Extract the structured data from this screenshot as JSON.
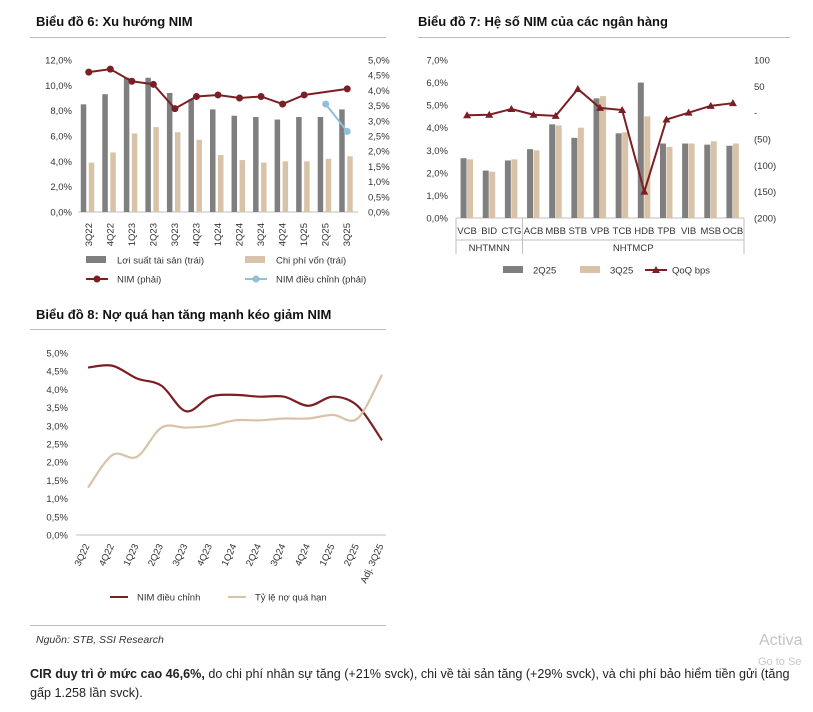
{
  "charts": {
    "c6": {
      "title": "Biểu đồ 6: Xu hướng NIM"
    },
    "c7": {
      "title": "Biểu đồ 7: Hệ số NIM của các ngân hàng"
    },
    "c8": {
      "title": "Biểu đồ 8: Nợ quá hạn tăng mạnh kéo giảm NIM"
    }
  },
  "source": "Nguồn: STB, SSI Research",
  "footnote": {
    "bold": "CIR duy trì ở mức cao 46,6%,",
    "text": " do chi phí nhân sự tăng (+21% svck), chi về tài sản tăng (+29% svck), và chi phí bảo hiểm tiền gửi (tăng gấp 1.258 lần svck)."
  },
  "watermark": {
    "line1": "Activa",
    "line2": "Go to Se"
  },
  "colors": {
    "dark_gray": "#7f7f7f",
    "tan": "#d9c3a8",
    "maroon": "#7b1f24",
    "light_blue": "#8fc0d8"
  },
  "chart_data": [
    {
      "type": "bar",
      "title": "Biểu đồ 6: Xu hướng NIM",
      "categories": [
        "3Q22",
        "4Q22",
        "1Q23",
        "2Q23",
        "3Q23",
        "4Q23",
        "1Q24",
        "2Q24",
        "3Q24",
        "4Q24",
        "1Q25",
        "2Q25",
        "3Q25"
      ],
      "y_left_ticks": [
        "0,0%",
        "2,0%",
        "4,0%",
        "6,0%",
        "8,0%",
        "10,0%",
        "12,0%"
      ],
      "y_right_ticks": [
        "0,0%",
        "0,5%",
        "1,0%",
        "1,5%",
        "2,0%",
        "2,5%",
        "3,0%",
        "3,5%",
        "4,0%",
        "4,5%",
        "5,0%"
      ],
      "ylim_left": [
        0,
        12
      ],
      "ylim_right": [
        0,
        5
      ],
      "series": [
        {
          "name": "Lơi suất tài sản (trái)",
          "kind": "bar",
          "axis": "left",
          "color": "#7f7f7f",
          "values": [
            8.5,
            9.3,
            10.6,
            10.6,
            9.4,
            8.9,
            8.1,
            7.6,
            7.5,
            7.3,
            7.5,
            7.5,
            8.1
          ]
        },
        {
          "name": "Chi phí vốn (trái)",
          "kind": "bar",
          "axis": "left",
          "color": "#d9c3a8",
          "values": [
            3.9,
            4.7,
            6.2,
            6.7,
            6.3,
            5.7,
            4.5,
            4.1,
            3.9,
            4.0,
            4.0,
            4.2,
            4.4
          ]
        },
        {
          "name": "NIM (phải)",
          "kind": "line",
          "axis": "right",
          "color": "#7b1f24",
          "values": [
            4.6,
            4.7,
            4.3,
            4.2,
            3.4,
            3.8,
            3.85,
            3.75,
            3.8,
            3.55,
            3.85,
            null,
            4.05
          ]
        },
        {
          "name": "NIM điều chỉnh (phải)",
          "kind": "line",
          "axis": "right",
          "color": "#8fc0d8",
          "values": [
            null,
            null,
            null,
            null,
            null,
            null,
            null,
            null,
            null,
            null,
            null,
            3.55,
            2.65
          ]
        }
      ]
    },
    {
      "type": "bar",
      "title": "Biểu đồ 7: Hệ số NIM của các ngân hàng",
      "categories": [
        "VCB",
        "BID",
        "CTG",
        "ACB",
        "MBB",
        "STB",
        "VPB",
        "TCB",
        "HDB",
        "TPB",
        "VIB",
        "MSB",
        "OCB"
      ],
      "groups": [
        {
          "label": "NHTMNN",
          "size": 3
        },
        {
          "label": "NHTMCP",
          "size": 10
        }
      ],
      "y_left_ticks": [
        "0,0%",
        "1,0%",
        "2,0%",
        "3,0%",
        "4,0%",
        "5,0%",
        "6,0%",
        "7,0%"
      ],
      "y_right_ticks": [
        "100",
        "50",
        "-",
        "(50)",
        "(100)",
        "(150)",
        "(200)"
      ],
      "ylim_left": [
        0,
        7
      ],
      "ylim_right": [
        -200,
        100
      ],
      "series": [
        {
          "name": "2Q25",
          "kind": "bar",
          "axis": "left",
          "color": "#7f7f7f",
          "values": [
            2.65,
            2.1,
            2.55,
            3.05,
            4.15,
            3.55,
            5.3,
            3.75,
            6.0,
            3.3,
            3.3,
            3.25,
            3.2
          ]
        },
        {
          "name": "3Q25",
          "kind": "bar",
          "axis": "left",
          "color": "#d9c3a8",
          "values": [
            2.6,
            2.05,
            2.6,
            3.0,
            4.1,
            4.0,
            5.4,
            3.8,
            4.5,
            3.15,
            3.3,
            3.4,
            3.3
          ]
        },
        {
          "name": "QoQ bps",
          "kind": "line",
          "axis": "right",
          "color": "#7b1f24",
          "values": [
            -5,
            -4,
            7,
            -4,
            -6,
            45,
            9,
            5,
            -150,
            -13,
            0,
            13,
            18
          ]
        }
      ]
    },
    {
      "type": "line",
      "title": "Biểu đồ 8: Nợ quá hạn tăng mạnh kéo giảm NIM",
      "categories": [
        "3Q22",
        "4Q22",
        "1Q23",
        "2Q23",
        "3Q23",
        "4Q23",
        "1Q24",
        "2Q24",
        "3Q24",
        "4Q24",
        "1Q25",
        "2Q25",
        "Adj. 3Q25"
      ],
      "y_ticks": [
        "0,0%",
        "0,5%",
        "1,0%",
        "1,5%",
        "2,0%",
        "2,5%",
        "3,0%",
        "3,5%",
        "4,0%",
        "4,5%",
        "5,0%"
      ],
      "ylim": [
        0,
        5
      ],
      "series": [
        {
          "name": "NIM điều chỉnh",
          "color": "#7b1f24",
          "values": [
            4.6,
            4.65,
            4.3,
            4.1,
            3.4,
            3.8,
            3.85,
            3.8,
            3.8,
            3.55,
            3.8,
            3.55,
            2.6
          ]
        },
        {
          "name": "Tỷ lệ nợ quá hạn",
          "color": "#d9c3a8",
          "values": [
            1.3,
            2.2,
            2.15,
            2.95,
            2.95,
            3.0,
            3.15,
            3.15,
            3.2,
            3.2,
            3.3,
            3.2,
            4.4
          ]
        }
      ]
    }
  ]
}
